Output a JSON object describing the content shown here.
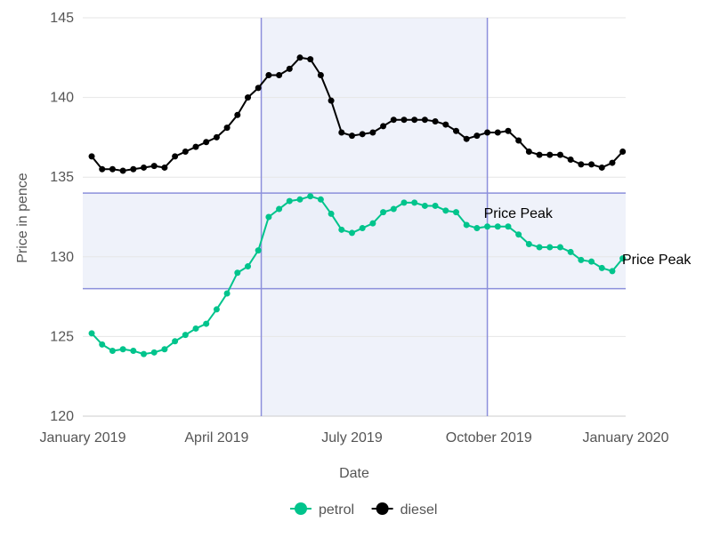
{
  "chart_data": {
    "type": "line",
    "xlabel": "Date",
    "ylabel": "Price in pence",
    "ylim": [
      120,
      145
    ],
    "xlim": [
      "2019-01-01",
      "2020-01-01"
    ],
    "yticks": [
      120,
      125,
      130,
      135,
      140,
      145
    ],
    "xticks": [
      {
        "date": "2019-01-01",
        "label": "January 2019"
      },
      {
        "date": "2019-04-01",
        "label": "April 2019"
      },
      {
        "date": "2019-07-01",
        "label": "July 2019"
      },
      {
        "date": "2019-10-01",
        "label": "October 2019"
      },
      {
        "date": "2020-01-01",
        "label": "January 2020"
      }
    ],
    "grid": "horizontal",
    "legend_position": "bottom",
    "x": [
      "2019-01-07",
      "2019-01-14",
      "2019-01-21",
      "2019-01-28",
      "2019-02-04",
      "2019-02-11",
      "2019-02-18",
      "2019-02-25",
      "2019-03-04",
      "2019-03-11",
      "2019-03-18",
      "2019-03-25",
      "2019-04-01",
      "2019-04-08",
      "2019-04-15",
      "2019-04-22",
      "2019-04-29",
      "2019-05-06",
      "2019-05-13",
      "2019-05-20",
      "2019-05-27",
      "2019-06-03",
      "2019-06-10",
      "2019-06-17",
      "2019-06-24",
      "2019-07-01",
      "2019-07-08",
      "2019-07-15",
      "2019-07-22",
      "2019-07-29",
      "2019-08-05",
      "2019-08-12",
      "2019-08-19",
      "2019-08-26",
      "2019-09-02",
      "2019-09-09",
      "2019-09-16",
      "2019-09-23",
      "2019-09-30",
      "2019-10-07",
      "2019-10-14",
      "2019-10-21",
      "2019-10-28",
      "2019-11-04",
      "2019-11-11",
      "2019-11-18",
      "2019-11-25",
      "2019-12-02",
      "2019-12-09",
      "2019-12-16",
      "2019-12-23",
      "2019-12-30"
    ],
    "series": [
      {
        "name": "petrol",
        "color": "#00c48c",
        "values": [
          125.2,
          124.5,
          124.1,
          124.2,
          124.1,
          123.9,
          124.0,
          124.2,
          124.7,
          125.1,
          125.5,
          125.8,
          126.7,
          127.7,
          129.0,
          129.4,
          130.4,
          132.5,
          133.0,
          133.5,
          133.6,
          133.8,
          133.6,
          132.7,
          131.7,
          131.5,
          131.8,
          132.1,
          132.8,
          133.0,
          133.4,
          133.4,
          133.2,
          133.2,
          132.9,
          132.8,
          132.0,
          131.8,
          131.9,
          131.9,
          131.9,
          131.4,
          130.8,
          130.6,
          130.6,
          130.6,
          130.3,
          129.8,
          129.7,
          129.3,
          129.1,
          129.9
        ]
      },
      {
        "name": "diesel",
        "color": "#000000",
        "values": [
          136.3,
          135.5,
          135.5,
          135.4,
          135.5,
          135.6,
          135.7,
          135.6,
          136.3,
          136.6,
          136.9,
          137.2,
          137.5,
          138.1,
          138.9,
          140.0,
          140.6,
          141.4,
          141.4,
          141.8,
          142.5,
          142.4,
          141.4,
          139.8,
          137.8,
          137.6,
          137.7,
          137.8,
          138.2,
          138.6,
          138.6,
          138.6,
          138.6,
          138.5,
          138.3,
          137.9,
          137.4,
          137.6,
          137.8,
          137.8,
          137.9,
          137.3,
          136.6,
          136.4,
          136.4,
          136.4,
          136.1,
          135.8,
          135.8,
          135.6,
          135.9,
          136.6
        ]
      }
    ],
    "bands": [
      {
        "axis": "x",
        "from": "2019-05-01",
        "to": "2019-09-30",
        "fill": "#eaedf8",
        "line": "#8b8fdb"
      },
      {
        "axis": "y",
        "from": 128,
        "to": 134,
        "fill": "#eaedf8",
        "line": "#8b8fdb"
      }
    ],
    "annotations": [
      {
        "text": "Price Peak",
        "x": "2019-09-30",
        "y": 132.9
      },
      {
        "text": "Price Peak",
        "x": "2020-01-01",
        "y": 130.0
      }
    ]
  }
}
